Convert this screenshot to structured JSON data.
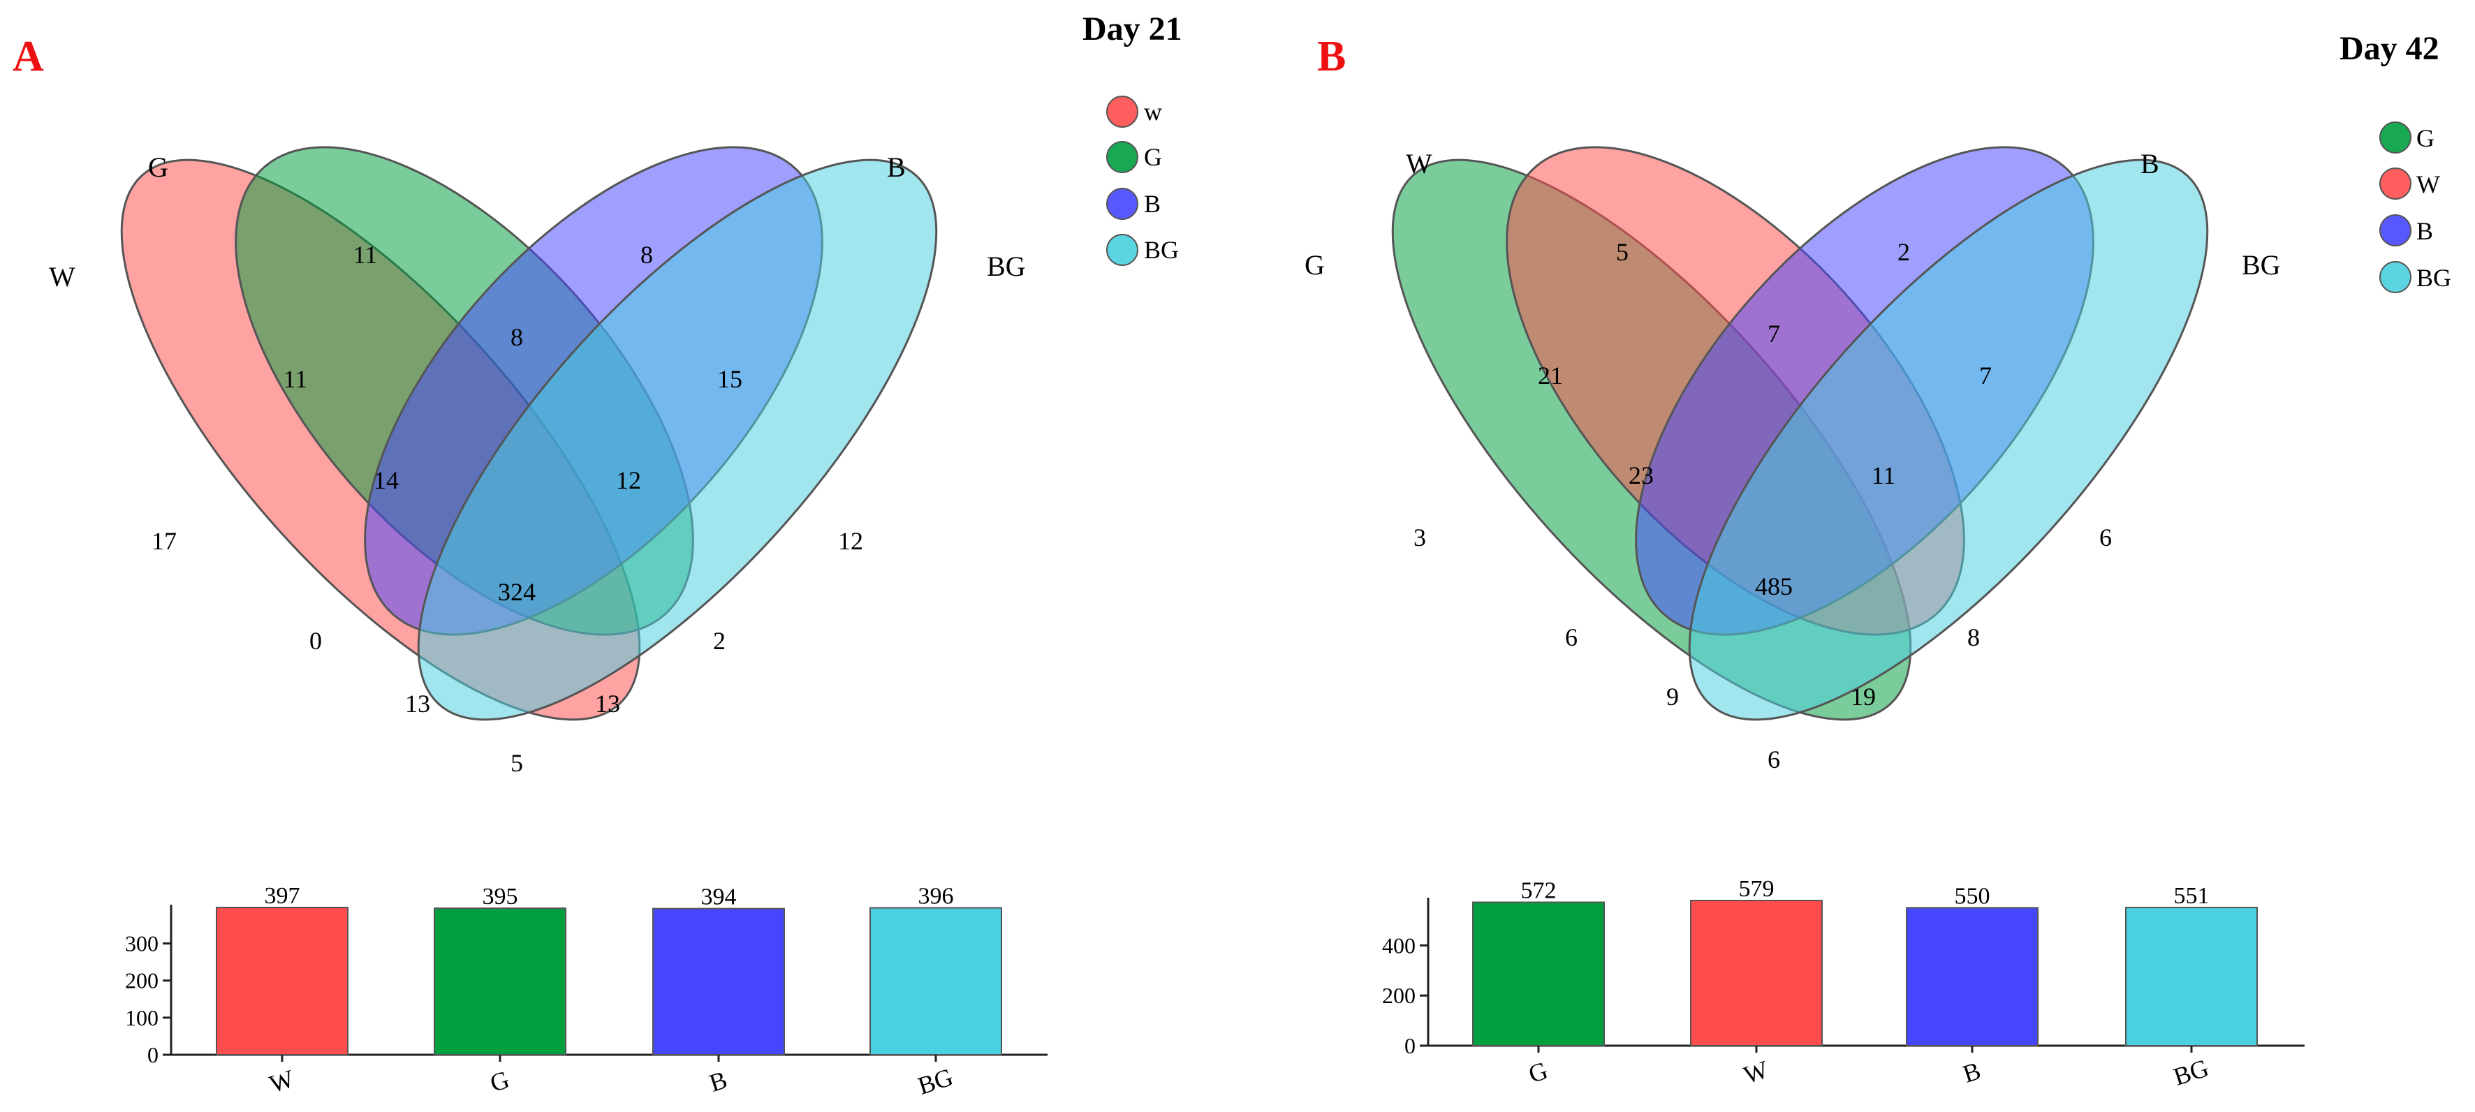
{
  "colors": {
    "red": "#ff4d4d",
    "green": "#00a040",
    "blue": "#4646ff",
    "cyan": "#4ad0e0",
    "letter": "#ee1111"
  },
  "chart_data": [
    {
      "type": "venn",
      "panel": "A",
      "title": "Day 21",
      "sets": [
        {
          "name": "W",
          "color": "#ff4d4d"
        },
        {
          "name": "G",
          "color": "#00a040"
        },
        {
          "name": "B",
          "color": "#4646ff"
        },
        {
          "name": "BG",
          "color": "#4ad0e0"
        }
      ],
      "legend": [
        {
          "label": "w",
          "color": "#ff4d4d"
        },
        {
          "label": "G",
          "color": "#00a040"
        },
        {
          "label": "B",
          "color": "#4646ff"
        },
        {
          "label": "BG",
          "color": "#4ad0e0"
        }
      ],
      "regions": [
        {
          "sets": [
            "G"
          ],
          "value": 11
        },
        {
          "sets": [
            "B"
          ],
          "value": 8
        },
        {
          "sets": [
            "G",
            "B"
          ],
          "value": 8
        },
        {
          "sets": [
            "W",
            "G"
          ],
          "value": 11
        },
        {
          "sets": [
            "B",
            "BG"
          ],
          "value": 15
        },
        {
          "sets": [
            "W",
            "G",
            "B"
          ],
          "value": 14
        },
        {
          "sets": [
            "G",
            "B",
            "BG"
          ],
          "value": 12
        },
        {
          "sets": [
            "W"
          ],
          "value": 17
        },
        {
          "sets": [
            "BG"
          ],
          "value": 12
        },
        {
          "sets": [
            "W",
            "G",
            "B",
            "BG"
          ],
          "value": 324
        },
        {
          "sets": [
            "W",
            "B"
          ],
          "value": 0
        },
        {
          "sets": [
            "G",
            "BG"
          ],
          "value": 2
        },
        {
          "sets": [
            "W",
            "B",
            "BG"
          ],
          "value": 13
        },
        {
          "sets": [
            "W",
            "G",
            "BG"
          ],
          "value": 13
        },
        {
          "sets": [
            "W",
            "BG"
          ],
          "value": 5
        }
      ],
      "bar": {
        "categories": [
          "W",
          "G",
          "B",
          "BG"
        ],
        "values": [
          397,
          395,
          394,
          396
        ],
        "yticks": [
          0,
          100,
          200,
          300
        ],
        "ylim": [
          0,
          397
        ]
      }
    },
    {
      "type": "venn",
      "panel": "B",
      "title": "Day 42",
      "sets": [
        {
          "name": "G",
          "color": "#00a040"
        },
        {
          "name": "W",
          "color": "#ff4d4d"
        },
        {
          "name": "B",
          "color": "#4646ff"
        },
        {
          "name": "BG",
          "color": "#4ad0e0"
        }
      ],
      "legend": [
        {
          "label": "G",
          "color": "#00a040"
        },
        {
          "label": "W",
          "color": "#ff4d4d"
        },
        {
          "label": "B",
          "color": "#4646ff"
        },
        {
          "label": "BG",
          "color": "#4ad0e0"
        }
      ],
      "regions": [
        {
          "sets": [
            "W"
          ],
          "value": 5
        },
        {
          "sets": [
            "B"
          ],
          "value": 2
        },
        {
          "sets": [
            "W",
            "B"
          ],
          "value": 7
        },
        {
          "sets": [
            "G",
            "W"
          ],
          "value": 21
        },
        {
          "sets": [
            "B",
            "BG"
          ],
          "value": 7
        },
        {
          "sets": [
            "G",
            "W",
            "B"
          ],
          "value": 23
        },
        {
          "sets": [
            "W",
            "B",
            "BG"
          ],
          "value": 11
        },
        {
          "sets": [
            "G"
          ],
          "value": 3
        },
        {
          "sets": [
            "BG"
          ],
          "value": 6
        },
        {
          "sets": [
            "G",
            "W",
            "B",
            "BG"
          ],
          "value": 485
        },
        {
          "sets": [
            "G",
            "B"
          ],
          "value": 6
        },
        {
          "sets": [
            "W",
            "BG"
          ],
          "value": 8
        },
        {
          "sets": [
            "G",
            "B",
            "BG"
          ],
          "value": 9
        },
        {
          "sets": [
            "G",
            "W",
            "BG"
          ],
          "value": 19
        },
        {
          "sets": [
            "G",
            "BG"
          ],
          "value": 6
        }
      ],
      "bar": {
        "categories": [
          "G",
          "W",
          "B",
          "BG"
        ],
        "values": [
          572,
          579,
          550,
          551
        ],
        "yticks": [
          0,
          200,
          400
        ],
        "ylim": [
          0,
          579
        ]
      }
    }
  ]
}
